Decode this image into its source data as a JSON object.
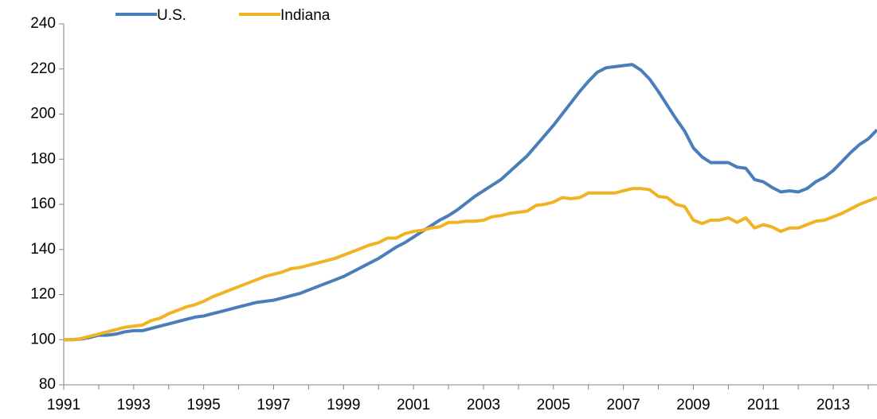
{
  "chart_data": {
    "type": "line",
    "x": [
      1991,
      1991.25,
      1991.5,
      1991.75,
      1992,
      1992.25,
      1992.5,
      1992.75,
      1993,
      1993.25,
      1993.5,
      1993.75,
      1994,
      1994.25,
      1994.5,
      1994.75,
      1995,
      1995.25,
      1995.5,
      1995.75,
      1996,
      1996.25,
      1996.5,
      1996.75,
      1997,
      1997.25,
      1997.5,
      1997.75,
      1998,
      1998.25,
      1998.5,
      1998.75,
      1999,
      1999.25,
      1999.5,
      1999.75,
      2000,
      2000.25,
      2000.5,
      2000.75,
      2001,
      2001.25,
      2001.5,
      2001.75,
      2002,
      2002.25,
      2002.5,
      2002.75,
      2003,
      2003.25,
      2003.5,
      2003.75,
      2004,
      2004.25,
      2004.5,
      2004.75,
      2005,
      2005.25,
      2005.5,
      2005.75,
      2006,
      2006.25,
      2006.5,
      2006.75,
      2007,
      2007.25,
      2007.5,
      2007.75,
      2008,
      2008.25,
      2008.5,
      2008.75,
      2009,
      2009.25,
      2009.5,
      2009.75,
      2010,
      2010.25,
      2010.5,
      2010.75,
      2011,
      2011.25,
      2011.5,
      2011.75,
      2012,
      2012.25,
      2012.5,
      2012.75,
      2013,
      2013.25,
      2013.5,
      2013.75,
      2014,
      2014.25
    ],
    "series": [
      {
        "name": "U.S.",
        "color": "#4a7ebb",
        "values": [
          100,
          100,
          100.3,
          101,
          102,
          102,
          102.5,
          103.5,
          104,
          104,
          105,
          106,
          107,
          108,
          109,
          110,
          110.5,
          111.5,
          112.5,
          113.5,
          114.5,
          115.5,
          116.5,
          117,
          117.5,
          118.5,
          119.5,
          120.5,
          122,
          123.5,
          125,
          126.5,
          128,
          130,
          132,
          134,
          136,
          138.5,
          141,
          143,
          145.5,
          148,
          150.5,
          153,
          155,
          157.5,
          160.5,
          163.5,
          166,
          168.5,
          171,
          174.5,
          178,
          181.5,
          186,
          190.5,
          195,
          200,
          205,
          210,
          214.5,
          218.5,
          220.5,
          221,
          221.5,
          222,
          219.5,
          215.5,
          210,
          204,
          198,
          192.5,
          185,
          181,
          178.5,
          178.5,
          178.5,
          176.5,
          176,
          171,
          170,
          167.5,
          165.5,
          166,
          165.5,
          167,
          170,
          172,
          175,
          179,
          183,
          186.5,
          189,
          193
        ]
      },
      {
        "name": "Indiana",
        "color": "#f0b323",
        "values": [
          100,
          100,
          100.5,
          101.5,
          102.5,
          103.5,
          104.5,
          105.5,
          106,
          106.5,
          108.5,
          109.5,
          111.5,
          113,
          114.5,
          115.5,
          117,
          119,
          120.5,
          122,
          123.5,
          125,
          126.5,
          128,
          129,
          130,
          131.5,
          132,
          133,
          134,
          135,
          136,
          137.5,
          139,
          140.5,
          142,
          143,
          145,
          145,
          147,
          148,
          148.5,
          149.5,
          150,
          152,
          152,
          152.5,
          152.5,
          153,
          154.5,
          155,
          156,
          156.5,
          157,
          159.5,
          160,
          161,
          163,
          162.5,
          163,
          165,
          165,
          165,
          165,
          166,
          167,
          167,
          166.5,
          163.5,
          163,
          160,
          159,
          153,
          151.5,
          153,
          153,
          154,
          152,
          154,
          149.5,
          151,
          150,
          148,
          149.5,
          149.5,
          151,
          152.5,
          153,
          154.5,
          156,
          158,
          160,
          161.5,
          163
        ]
      }
    ],
    "xlim": [
      1991,
      2014.25
    ],
    "xticks": [
      1991,
      1993,
      1995,
      1997,
      1999,
      2001,
      2003,
      2005,
      2007,
      2009,
      2011,
      2013
    ],
    "xminorticks": [
      1992,
      1994,
      1996,
      1998,
      2000,
      2002,
      2004,
      2006,
      2008,
      2010,
      2012,
      2014
    ],
    "ylim": [
      80,
      240
    ],
    "yticks": [
      80,
      100,
      120,
      140,
      160,
      180,
      200,
      220,
      240
    ],
    "legend": "top-left"
  }
}
